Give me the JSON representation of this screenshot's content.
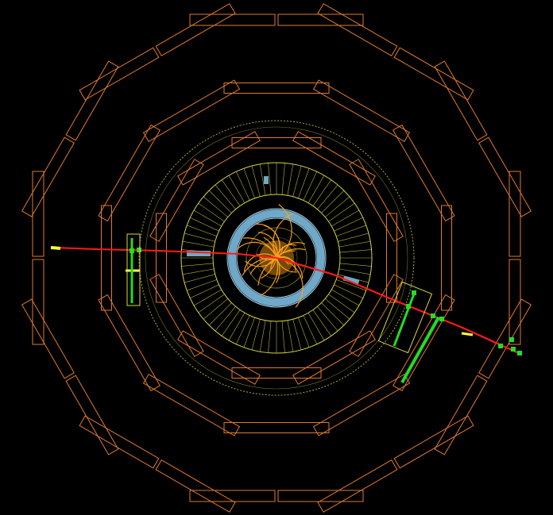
{
  "event_display": {
    "colors": {
      "background": "#000000",
      "muon_chambers": "#e07a2e",
      "calorimeter": "#d8d640",
      "tracker_body": "#6fa8c8",
      "tracker_tracks": "#ffa21a",
      "muon_track": "#ff1a1a",
      "muon_hits": "#22dd22",
      "segment_highlight": "#ffff40"
    },
    "counts": {
      "muon_chamber_rings": 3,
      "muon_chamber_sectors": 12,
      "calorimeter_towers": 72,
      "tracker_tracks": 30
    }
  }
}
